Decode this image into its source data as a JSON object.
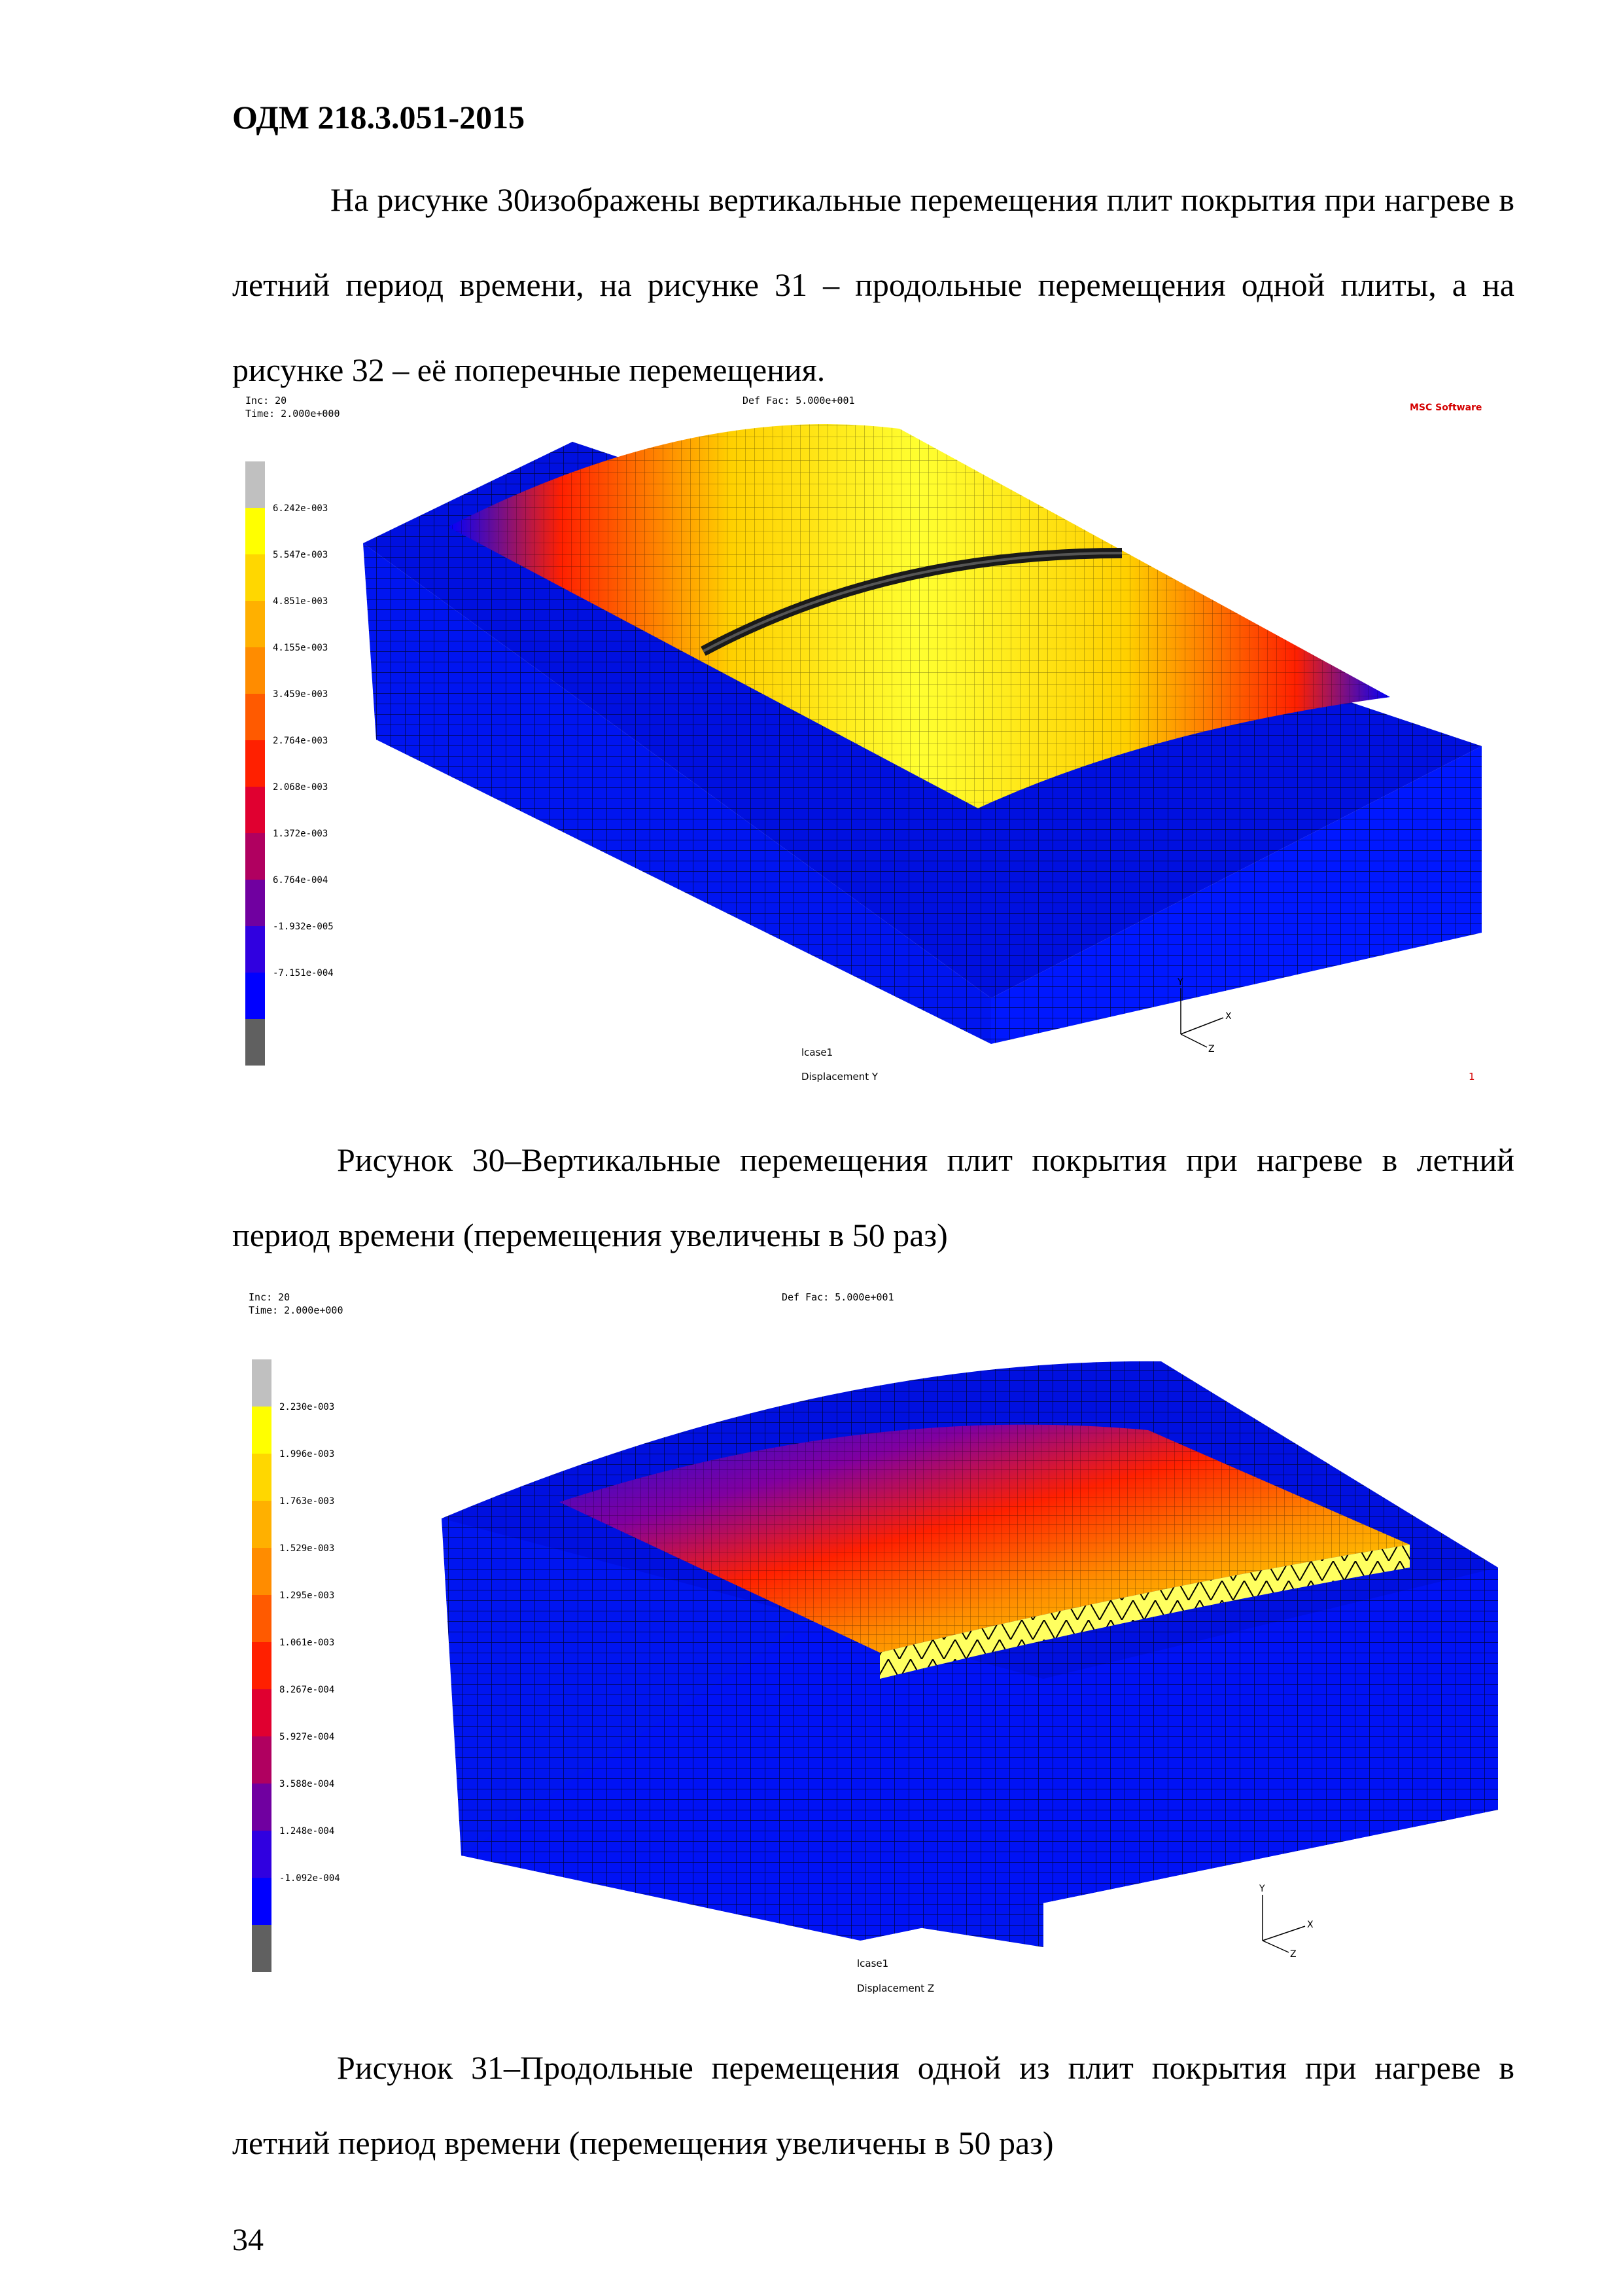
{
  "header": {
    "doc_code": "ОДМ 218.3.051-2015"
  },
  "intro_text": "На рисунке 30изображены вертикальные перемещения плит покрытия при нагреве в летний период времени, на рисунке 31 – продольные перемещения одной плиты, а на рисунке 32 – её поперечные перемещения.",
  "figure30": {
    "inc": "Inc:  20",
    "time": "Time:  2.000e+000",
    "def_fac": "Def Fac:  5.000e+001",
    "logo_text": "MSC Software",
    "legend_values": [
      "6.242e-003",
      "5.547e-003",
      "4.851e-003",
      "4.155e-003",
      "3.459e-003",
      "2.764e-003",
      "2.068e-003",
      "1.372e-003",
      "6.764e-004",
      "-1.932e-005",
      "-7.151e-004"
    ],
    "legend_colors": [
      "#c0c0c0",
      "#ffff00",
      "#ffd700",
      "#ffb000",
      "#ff8c00",
      "#ff5a00",
      "#ff2000",
      "#e00030",
      "#b00060",
      "#7000a0",
      "#3000e0",
      "#0000ff",
      "#606060"
    ],
    "axes": {
      "y": "Y",
      "x": "X",
      "z": "Z"
    },
    "lcase": "lcase1",
    "result": "Displacement Y",
    "frame_number": "1",
    "caption": "Рисунок 30–Вертикальные перемещения плит покрытия при нагреве в летний период времени (перемещения увеличены в 50 раз)"
  },
  "figure31": {
    "inc": "Inc:  20",
    "time": "Time:  2.000e+000",
    "def_fac": "Def Fac:  5.000e+001",
    "legend_values": [
      "2.230e-003",
      "1.996e-003",
      "1.763e-003",
      "1.529e-003",
      "1.295e-003",
      "1.061e-003",
      "8.267e-004",
      "5.927e-004",
      "3.588e-004",
      "1.248e-004",
      "-1.092e-004"
    ],
    "legend_colors": [
      "#c0c0c0",
      "#ffff00",
      "#ffd700",
      "#ffb000",
      "#ff8c00",
      "#ff5a00",
      "#ff2000",
      "#e00030",
      "#b00060",
      "#7000a0",
      "#3000e0",
      "#0000ff",
      "#606060"
    ],
    "axes": {
      "y": "Y",
      "x": "X",
      "z": "Z"
    },
    "lcase": "lcase1",
    "result": "Displacement Z",
    "caption": "Рисунок 31–Продольные перемещения одной из плит покрытия при нагреве в летний период времени (перемещения увеличены в 50 раз)"
  },
  "page_number": "34"
}
